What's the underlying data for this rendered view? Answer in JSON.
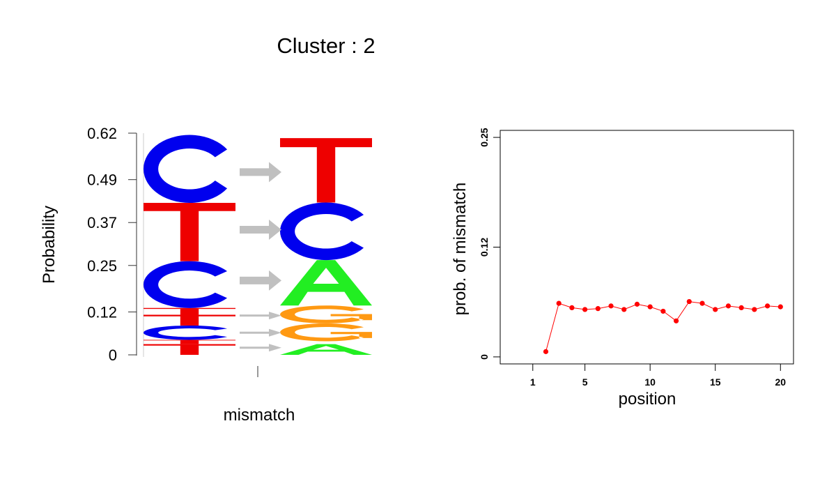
{
  "figure": {
    "title": "Cluster : 2"
  },
  "chart_data": [
    {
      "type": "sequence-logo",
      "ylabel": "Probability",
      "xlabel": "mismatch",
      "ylim": [
        0,
        0.62
      ],
      "y_ticks": [
        "0",
        "0.12",
        "0.25",
        "0.37",
        "0.49",
        "0.62"
      ],
      "y_tick_values": [
        0,
        0.12,
        0.25,
        0.37,
        0.49,
        0.62
      ],
      "colors": {
        "A": "#22ee22",
        "C": "#0000ee",
        "G": "#ff9912",
        "T": "#ee0000"
      },
      "arrow_color": "#c0c0c0",
      "transitions": [
        {
          "from": "C",
          "to": "T",
          "probability": 0.21
        },
        {
          "from": "T",
          "to": "C",
          "probability": 0.17
        },
        {
          "from": "C",
          "to": "A",
          "probability": 0.13
        },
        {
          "from": "T",
          "to": "G",
          "probability": 0.03
        },
        {
          "from": "C",
          "to": "G",
          "probability": 0.04
        },
        {
          "from": "T",
          "to": "A",
          "probability": 0.03
        }
      ],
      "left_stack": [
        {
          "letter": "T",
          "from": 0,
          "to": 0.03
        },
        {
          "letter": "T",
          "from": 0.03,
          "to": 0.042
        },
        {
          "letter": "C",
          "from": 0.042,
          "to": 0.082
        },
        {
          "letter": "T",
          "from": 0.082,
          "to": 0.112
        },
        {
          "letter": "T",
          "from": 0.112,
          "to": 0.131
        },
        {
          "letter": "C",
          "from": 0.131,
          "to": 0.262
        },
        {
          "letter": "T",
          "from": 0.262,
          "to": 0.425
        },
        {
          "letter": "C",
          "from": 0.425,
          "to": 0.615
        }
      ],
      "right_stack": [
        {
          "letter": "A",
          "from": 0,
          "to": 0.03
        },
        {
          "letter": "G",
          "from": 0.038,
          "to": 0.088
        },
        {
          "letter": "G",
          "from": 0.088,
          "to": 0.138
        },
        {
          "letter": "A",
          "from": 0.138,
          "to": 0.265
        },
        {
          "letter": "C",
          "from": 0.265,
          "to": 0.426
        },
        {
          "letter": "T",
          "from": 0.426,
          "to": 0.606
        }
      ]
    },
    {
      "type": "line",
      "xlabel": "position",
      "ylabel": "prob. of mismatch",
      "xlim": [
        -1.5,
        21
      ],
      "ylim": [
        -0.008,
        0.258
      ],
      "x_ticks": [
        1,
        5,
        10,
        15,
        20
      ],
      "y_ticks": [
        "0",
        "0.12",
        "0.25"
      ],
      "y_tick_values": [
        0,
        0.125,
        0.25
      ],
      "color": "#ff0000",
      "x": [
        2,
        3,
        4,
        5,
        6,
        7,
        8,
        9,
        10,
        11,
        12,
        13,
        14,
        15,
        16,
        17,
        18,
        19,
        20
      ],
      "values": [
        0.006,
        0.061,
        0.056,
        0.054,
        0.055,
        0.058,
        0.054,
        0.06,
        0.057,
        0.052,
        0.041,
        0.063,
        0.061,
        0.054,
        0.058,
        0.056,
        0.054,
        0.058,
        0.057
      ]
    }
  ]
}
